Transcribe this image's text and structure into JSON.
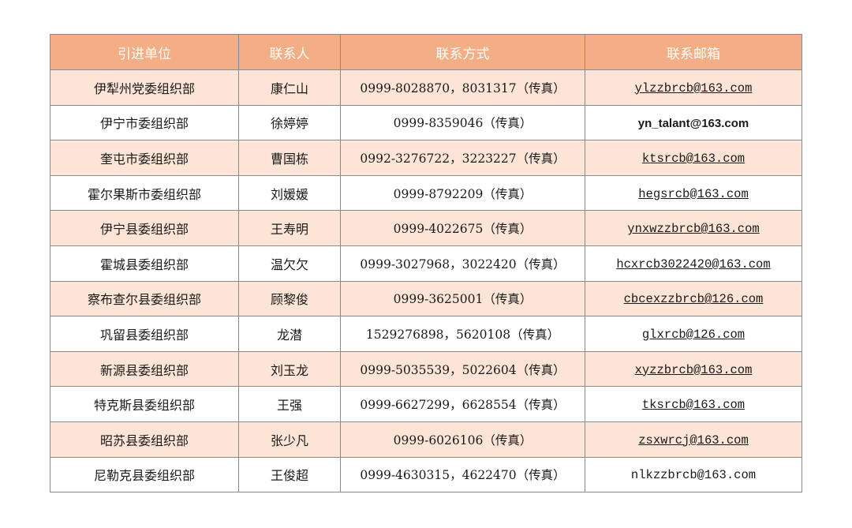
{
  "table": {
    "headers": [
      "引进单位",
      "联系人",
      "联系方式",
      "联系邮箱"
    ],
    "colors": {
      "header_bg": "#F3AE85",
      "header_text": "#FFFFFF",
      "stripe_bg": "#FCE4D6",
      "border": "#8A8A8A"
    },
    "rows": [
      {
        "unit": "伊犁州党委组织部",
        "contact": "康仁山",
        "phone": "0999-8028870，8031317（传真）",
        "email": "ylzzbrcb@163.com",
        "email_style": "link"
      },
      {
        "unit": "伊宁市委组织部",
        "contact": "徐婷婷",
        "phone": "0999-8359046（传真）",
        "email": "yn_talant@163.com",
        "email_style": "sans"
      },
      {
        "unit": "奎屯市委组织部",
        "contact": "曹国栋",
        "phone": "0992-3276722，3223227（传真）",
        "email": "ktsrcb@163.com",
        "email_style": "link"
      },
      {
        "unit": "霍尔果斯市委组织部",
        "contact": "刘媛媛",
        "phone": "0999-8792209（传真）",
        "email": "hegsrcb@163.com",
        "email_style": "link"
      },
      {
        "unit": "伊宁县委组织部",
        "contact": "王寿明",
        "phone": "0999-4022675（传真）",
        "email": "ynxwzzbrcb@163.com",
        "email_style": "link"
      },
      {
        "unit": "霍城县委组织部",
        "contact": "温欠欠",
        "phone": "0999-3027968，3022420（传真）",
        "email": "hcxrcb3022420@163.com",
        "email_style": "link"
      },
      {
        "unit": "察布查尔县委组织部",
        "contact": "顾黎俊",
        "phone": "0999-3625001（传真）",
        "email": "cbcexzzbrcb@126.com",
        "email_style": "link"
      },
      {
        "unit": "巩留县委组织部",
        "contact": "龙潜",
        "phone": "1529276898，5620108（传真）",
        "email": "glxrcb@126.com",
        "email_style": "link"
      },
      {
        "unit": "新源县委组织部",
        "contact": "刘玉龙",
        "phone": "0999-5035539，5022604（传真）",
        "email": "xyzzbrcb@163.com",
        "email_style": "link"
      },
      {
        "unit": "特克斯县委组织部",
        "contact": "王强",
        "phone": "0999-6627299，6628554（传真）",
        "email": "tksrcb@163.com",
        "email_style": "link"
      },
      {
        "unit": "昭苏县委组织部",
        "contact": "张少凡",
        "phone": "0999-6026106（传真）",
        "email": "zsxwrcj@163.com",
        "email_style": "link"
      },
      {
        "unit": "尼勒克县委组织部",
        "contact": "王俊超",
        "phone": "0999-4630315，4622470（传真）",
        "email": "nlkzzbrcb@163.com",
        "email_style": "plain"
      }
    ]
  }
}
